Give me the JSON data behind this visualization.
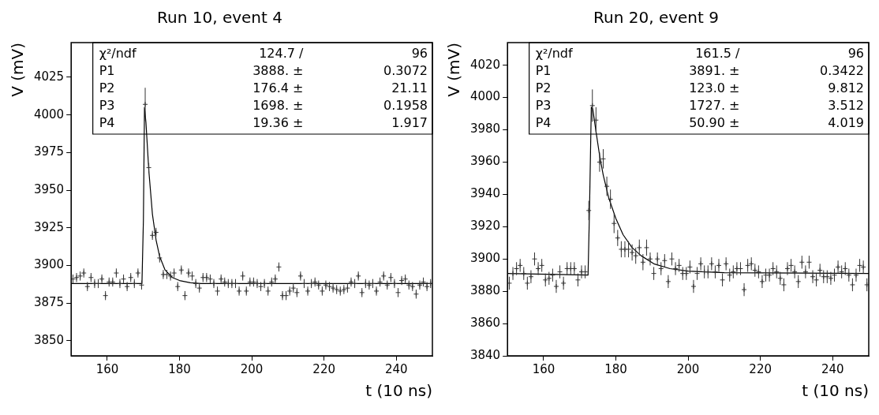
{
  "chart_data": [
    {
      "type": "scatter",
      "title": "Run 10, event 4",
      "xlabel": "t (10 ns)",
      "ylabel": "V (mV)",
      "xlim": [
        150,
        250
      ],
      "ylim": [
        3840,
        4048
      ],
      "xticks": [
        160,
        180,
        200,
        220,
        240
      ],
      "yticks": [
        3850,
        3875,
        3900,
        3925,
        3950,
        3975,
        4000,
        4025
      ],
      "annotations": [
        "χ²/ndf 124.7 / 96",
        "P1 3888. ± 0.3072",
        "P2 176.4 ± 21.11",
        "P3 1698. ± 0.1958",
        "P4 19.36 ± 1.917"
      ],
      "series": [
        {
          "type": "scatter",
          "marker": "cross",
          "color": "#333333",
          "x": [
            150.5,
            151.5,
            152.5,
            153.5,
            154.5,
            155.5,
            156.5,
            157.5,
            158.5,
            159.5,
            160.5,
            161.5,
            162.5,
            163.5,
            164.5,
            165.5,
            166.5,
            167.5,
            168.5,
            169.5,
            170.5,
            171.5,
            172.5,
            173.5,
            174.5,
            175.5,
            176.5,
            177.5,
            178.5,
            179.5,
            180.5,
            181.5,
            182.5,
            183.5,
            184.5,
            185.5,
            186.5,
            187.5,
            188.5,
            189.5,
            190.5,
            191.5,
            192.5,
            193.5,
            194.5,
            195.5,
            196.5,
            197.5,
            198.5,
            199.5,
            200.5,
            201.5,
            202.5,
            203.5,
            204.5,
            205.5,
            206.5,
            207.5,
            208.5,
            209.5,
            210.5,
            211.5,
            212.5,
            213.5,
            214.5,
            215.5,
            216.5,
            217.5,
            218.5,
            219.5,
            220.5,
            221.5,
            222.5,
            223.5,
            224.5,
            225.5,
            226.5,
            227.5,
            228.5,
            229.5,
            230.5,
            231.5,
            232.5,
            233.5,
            234.5,
            235.5,
            236.5,
            237.5,
            238.5,
            239.5,
            240.5,
            241.5,
            242.5,
            243.5,
            244.5,
            245.5,
            246.5,
            247.5,
            248.5,
            249.5
          ],
          "values": [
            3891,
            3892,
            3893,
            3895,
            3886,
            3892,
            3888,
            3888,
            3891,
            3880,
            3889,
            3889,
            3895,
            3888,
            3891,
            3886,
            3892,
            3888,
            3895,
            3887,
            4007,
            3965,
            3920,
            3922,
            3905,
            3894,
            3894,
            3893,
            3895,
            3886,
            3897,
            3880,
            3895,
            3893,
            3888,
            3885,
            3892,
            3892,
            3891,
            3888,
            3883,
            3891,
            3889,
            3888,
            3888,
            3888,
            3883,
            3893,
            3883,
            3889,
            3889,
            3888,
            3886,
            3888,
            3883,
            3889,
            3891,
            3899,
            3880,
            3880,
            3883,
            3885,
            3882,
            3893,
            3888,
            3883,
            3888,
            3889,
            3887,
            3883,
            3887,
            3886,
            3885,
            3884,
            3883,
            3884,
            3885,
            3889,
            3888,
            3893,
            3882,
            3888,
            3887,
            3888,
            3883,
            3889,
            3893,
            3887,
            3892,
            3888,
            3882,
            3890,
            3891,
            3887,
            3886,
            3881,
            3887,
            3889,
            3886,
            3888
          ],
          "errors": [
            3,
            3,
            3,
            3,
            3,
            3,
            3,
            3,
            3,
            3,
            3,
            3,
            3,
            3,
            3,
            3,
            3,
            3,
            3,
            3,
            11,
            3,
            3,
            3,
            3,
            3,
            3,
            3,
            3,
            3,
            3,
            3,
            3,
            3,
            3,
            3,
            3,
            3,
            3,
            3,
            3,
            3,
            3,
            3,
            3,
            3,
            3,
            3,
            3,
            3,
            3,
            3,
            3,
            3,
            3,
            3,
            3,
            3,
            3,
            3,
            3,
            3,
            3,
            3,
            3,
            3,
            3,
            3,
            3,
            3,
            3,
            3,
            3,
            3,
            3,
            3,
            3,
            3,
            3,
            3,
            3,
            3,
            3,
            3,
            3,
            3,
            3,
            3,
            3,
            3,
            3,
            3,
            3,
            3,
            3,
            3,
            3,
            3,
            3,
            3
          ]
        },
        {
          "type": "line",
          "color": "#000000",
          "x": [
            150,
            169.6,
            170.0,
            170.3,
            170.7,
            171.5,
            172.5,
            173.5,
            174.5,
            176,
            178,
            180,
            183,
            186,
            250
          ],
          "values": [
            3888,
            3888,
            3930,
            4005,
            3995,
            3963,
            3934,
            3917,
            3906,
            3897,
            3892,
            3890,
            3888.5,
            3888,
            3888
          ]
        }
      ]
    },
    {
      "type": "scatter",
      "title": "Run 20, event 9",
      "xlabel": "t (10 ns)",
      "ylabel": "V (mV)",
      "xlim": [
        150,
        250
      ],
      "ylim": [
        3840,
        4034
      ],
      "xticks": [
        160,
        180,
        200,
        220,
        240
      ],
      "yticks": [
        3840,
        3860,
        3880,
        3900,
        3920,
        3940,
        3960,
        3980,
        4000,
        4020
      ],
      "annotations": [
        "χ²/ndf 161.5 / 96",
        "P1 3891. ± 0.3422",
        "P2 123.0 ± 9.812",
        "P3 1727. ± 3.512",
        "P4 50.90 ± 4.019"
      ],
      "series": [
        {
          "type": "scatter",
          "marker": "cross",
          "color": "#333333",
          "x": [
            150.5,
            151.5,
            152.5,
            153.5,
            154.5,
            155.5,
            156.5,
            157.5,
            158.5,
            159.5,
            160.5,
            161.5,
            162.5,
            163.5,
            164.5,
            165.5,
            166.5,
            167.5,
            168.5,
            169.5,
            170.5,
            171.5,
            172.5,
            173.5,
            174.5,
            175.5,
            176.5,
            177.5,
            178.5,
            179.5,
            180.5,
            181.5,
            182.5,
            183.5,
            184.5,
            185.5,
            186.5,
            187.5,
            188.5,
            189.5,
            190.5,
            191.5,
            192.5,
            193.5,
            194.5,
            195.5,
            196.5,
            197.5,
            198.5,
            199.5,
            200.5,
            201.5,
            202.5,
            203.5,
            204.5,
            205.5,
            206.5,
            207.5,
            208.5,
            209.5,
            210.5,
            211.5,
            212.5,
            213.5,
            214.5,
            215.5,
            216.5,
            217.5,
            218.5,
            219.5,
            220.5,
            221.5,
            222.5,
            223.5,
            224.5,
            225.5,
            226.5,
            227.5,
            228.5,
            229.5,
            230.5,
            231.5,
            232.5,
            233.5,
            234.5,
            235.5,
            236.5,
            237.5,
            238.5,
            239.5,
            240.5,
            241.5,
            242.5,
            243.5,
            244.5,
            245.5,
            246.5,
            247.5,
            248.5,
            249.5
          ],
          "values": [
            3885,
            3891,
            3894,
            3896,
            3891,
            3885,
            3889,
            3900,
            3894,
            3896,
            3887,
            3888,
            3890,
            3883,
            3892,
            3885,
            3894,
            3894,
            3894,
            3887,
            3892,
            3892,
            3930,
            3995,
            3986,
            3960,
            3962,
            3945,
            3937,
            3922,
            3913,
            3906,
            3906,
            3906,
            3904,
            3902,
            3907,
            3898,
            3907,
            3900,
            3891,
            3900,
            3894,
            3899,
            3886,
            3900,
            3894,
            3896,
            3891,
            3891,
            3895,
            3883,
            3891,
            3897,
            3892,
            3892,
            3897,
            3892,
            3896,
            3887,
            3897,
            3890,
            3892,
            3894,
            3894,
            3881,
            3896,
            3897,
            3893,
            3892,
            3886,
            3890,
            3890,
            3894,
            3892,
            3888,
            3884,
            3894,
            3896,
            3892,
            3886,
            3898,
            3892,
            3898,
            3889,
            3887,
            3893,
            3889,
            3889,
            3888,
            3890,
            3895,
            3892,
            3894,
            3890,
            3884,
            3890,
            3896,
            3895,
            3884
          ],
          "errors": [
            4,
            4,
            4,
            4,
            4,
            4,
            4,
            4,
            4,
            4,
            4,
            4,
            4,
            4,
            4,
            4,
            4,
            4,
            4,
            4,
            4,
            4,
            6,
            10,
            8,
            6,
            6,
            6,
            6,
            6,
            5,
            5,
            5,
            5,
            5,
            5,
            5,
            5,
            5,
            4,
            4,
            4,
            4,
            4,
            4,
            4,
            4,
            4,
            4,
            4,
            4,
            4,
            4,
            4,
            4,
            4,
            4,
            4,
            4,
            4,
            4,
            4,
            4,
            4,
            4,
            4,
            4,
            4,
            4,
            4,
            4,
            4,
            4,
            4,
            4,
            4,
            4,
            4,
            4,
            4,
            4,
            4,
            4,
            4,
            4,
            4,
            4,
            4,
            4,
            4,
            4,
            4,
            4,
            4,
            4,
            4,
            4,
            4,
            4,
            4
          ]
        },
        {
          "type": "line",
          "color": "#000000",
          "x": [
            150,
            172.3,
            172.7,
            173.2,
            173.6,
            174.5,
            175.5,
            176.5,
            178,
            180,
            182,
            184.5,
            187,
            190.5,
            195,
            200,
            210,
            250
          ],
          "values": [
            3891,
            3890,
            3930,
            3994,
            3993,
            3979,
            3964,
            3952,
            3938,
            3925,
            3915,
            3907,
            3902,
            3897,
            3894,
            3892.5,
            3891.5,
            3891
          ]
        }
      ]
    }
  ]
}
